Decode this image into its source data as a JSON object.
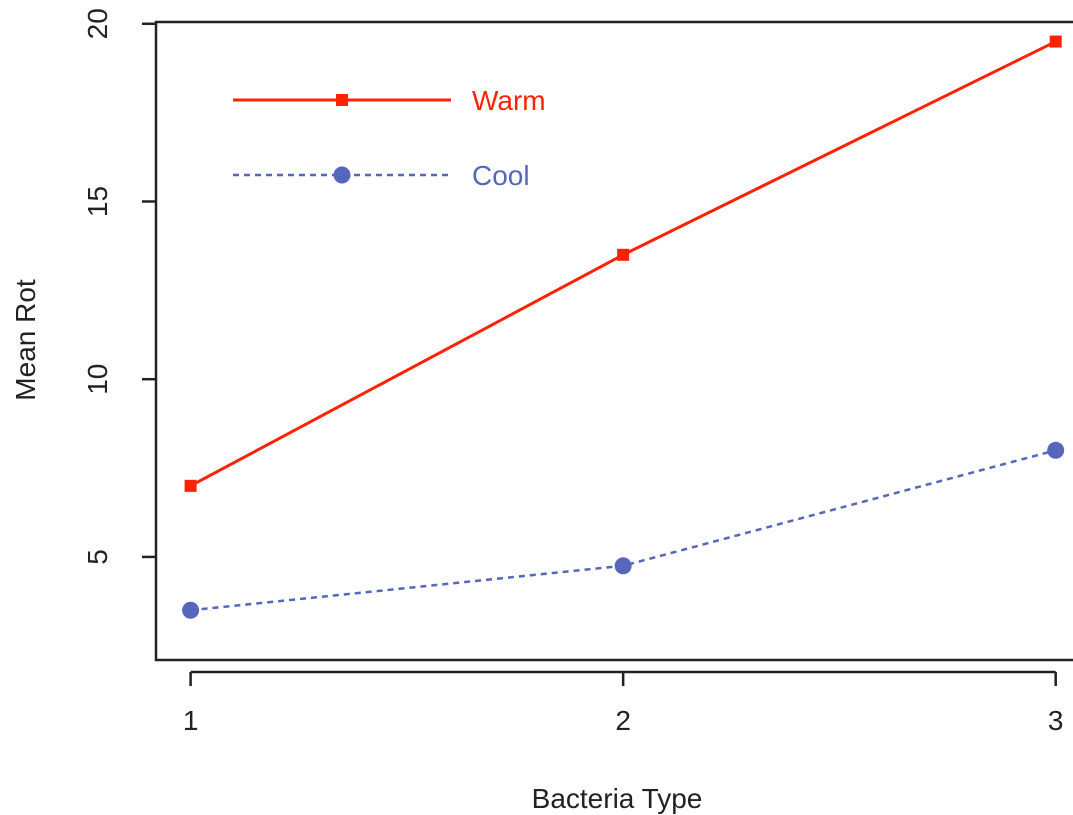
{
  "chart_data": {
    "type": "line",
    "title": "",
    "xlabel": "Bacteria Type",
    "ylabel": "Mean Rot",
    "categories": [
      "1",
      "2",
      "3"
    ],
    "x": [
      1,
      2,
      3
    ],
    "y_ticks": [
      "5",
      "10",
      "15",
      "20"
    ],
    "xlim": [
      0.92,
      3.04
    ],
    "ylim": [
      2.1,
      20.05
    ],
    "grid": false,
    "legend_position": "top-left",
    "series": [
      {
        "name": "Warm",
        "values": [
          7.0,
          13.5,
          19.5
        ],
        "color": "#ff2200",
        "line_style": "solid",
        "marker": "square"
      },
      {
        "name": "Cool",
        "values": [
          3.5,
          4.75,
          8.0
        ],
        "color": "#5566bb",
        "line_style": "dotted",
        "marker": "circle"
      }
    ]
  }
}
